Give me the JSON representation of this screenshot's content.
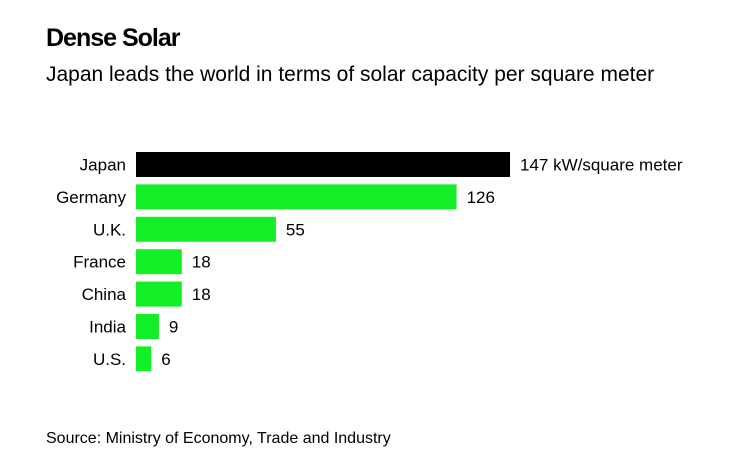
{
  "title": "Dense Solar",
  "subtitle": "Japan leads the world in terms of solar capacity per square meter",
  "source": "Source: Ministry of Economy, Trade and Industry",
  "chart_data": {
    "type": "bar",
    "orientation": "horizontal",
    "title": "Dense Solar",
    "subtitle": "Japan leads the world in terms of solar capacity per square meter",
    "categories": [
      "Japan",
      "Germany",
      "U.K.",
      "France",
      "China",
      "India",
      "U.S."
    ],
    "values": [
      147,
      126,
      55,
      18,
      18,
      9,
      6
    ],
    "data_labels": [
      "147 kW/square meter",
      "126",
      "55",
      "18",
      "18",
      "9",
      "6"
    ],
    "unit": "kW/square meter",
    "colors": {
      "highlight": "#000000",
      "default": "#13ee26"
    },
    "highlight_category": "Japan",
    "grid": false,
    "legend": "none"
  }
}
